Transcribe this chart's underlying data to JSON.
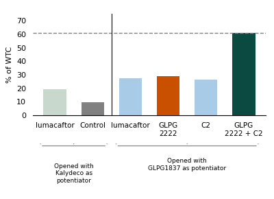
{
  "categories": [
    "lumacaftor",
    "Control",
    "lumacaftor",
    "GLPG\n2222",
    "C2",
    "GLPG\n2222 + C2"
  ],
  "values": [
    19.5,
    9.5,
    27.5,
    29.0,
    26.5,
    61.0
  ],
  "bar_colors": [
    "#c8d8cc",
    "#808080",
    "#a8cce8",
    "#c85000",
    "#a8cce8",
    "#0a4a40"
  ],
  "bar_width": 0.6,
  "ylabel": "% of WTC",
  "ylim": [
    0,
    75
  ],
  "yticks": [
    0,
    10,
    20,
    30,
    40,
    50,
    60,
    70
  ],
  "dashed_line_y": 61.0,
  "vline_x": 1.5,
  "group1_label": "Opened with\nKalydeco as\npotentiator",
  "group2_label": "Opened with\nGLPG1837 as potentiator",
  "bracket_color": "#888888",
  "background_color": "#ffffff"
}
